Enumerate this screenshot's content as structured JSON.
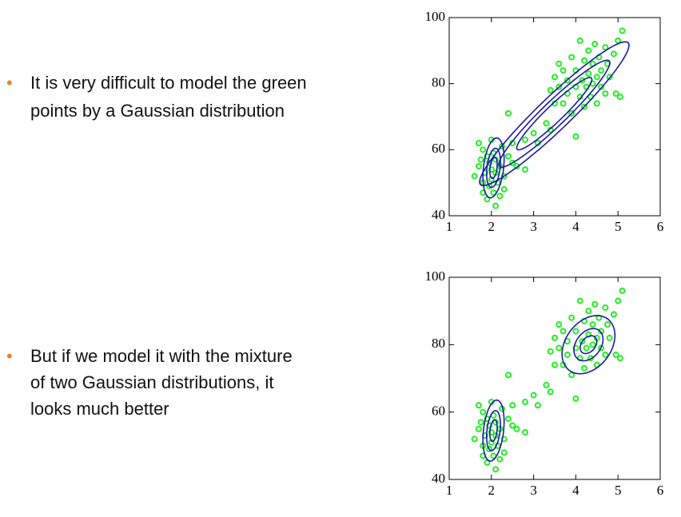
{
  "bullets": [
    [
      "It is very difficult to model the green",
      "points by a Gaussian distribution"
    ],
    [
      "But if we model it with the mixture",
      "of two Gaussian distributions, it",
      "looks much better"
    ]
  ],
  "chart_data": [
    {
      "type": "scatter",
      "color": "#22ee22",
      "line_color": "#1a1aa6",
      "xlim": [
        1,
        6
      ],
      "ylim": [
        40,
        100
      ],
      "xticks": [
        1,
        2,
        3,
        4,
        5,
        6
      ],
      "yticks": [
        40,
        60,
        80,
        100
      ],
      "x": [
        1.6,
        1.7,
        1.7,
        1.75,
        1.8,
        1.8,
        1.8,
        1.85,
        1.9,
        1.9,
        1.95,
        1.95,
        2.0,
        2.0,
        2.0,
        2.05,
        2.05,
        2.1,
        2.1,
        2.1,
        2.15,
        2.2,
        2.2,
        2.25,
        2.3,
        2.3,
        2.4,
        2.5,
        2.5,
        2.6,
        2.8,
        2.8,
        3.0,
        3.1,
        3.3,
        3.4,
        3.5,
        2.4,
        3.4,
        3.5,
        3.6,
        3.6,
        3.7,
        3.7,
        3.8,
        3.8,
        3.9,
        3.9,
        4.0,
        4.0,
        4.0,
        4.1,
        4.1,
        4.15,
        4.2,
        4.2,
        4.25,
        4.3,
        4.3,
        4.35,
        4.4,
        4.4,
        4.45,
        4.5,
        4.5,
        4.55,
        4.6,
        4.6,
        4.7,
        4.7,
        4.75,
        4.8,
        4.9,
        4.95,
        5.0,
        5.1,
        5.05
      ],
      "values": [
        52,
        55,
        62,
        57,
        50,
        47,
        60,
        53,
        45,
        58,
        49,
        56,
        51,
        54,
        63,
        47,
        59,
        43,
        53,
        57,
        50,
        46,
        55,
        61,
        48,
        52,
        58,
        56,
        62,
        55,
        54,
        63,
        65,
        62,
        68,
        66,
        74,
        71,
        78,
        82,
        79,
        86,
        74,
        84,
        77,
        81,
        71,
        88,
        64,
        79,
        84,
        76,
        93,
        81,
        73,
        87,
        79,
        83,
        90,
        76,
        80,
        86,
        92,
        74,
        82,
        88,
        79,
        84,
        77,
        91,
        86,
        82,
        89,
        77,
        93,
        96,
        76
      ],
      "ellipses": [
        {
          "center": [
            3.49,
            70.9
          ],
          "axes": [
            [
              1.75,
              21.5
            ],
            [
              0.27,
              -3.5
            ]
          ]
        },
        {
          "center": [
            3.49,
            70.9
          ],
          "axes": [
            [
              1.3,
              16
            ],
            [
              0.2,
              -2.6
            ]
          ]
        },
        {
          "center": [
            3.49,
            70.9
          ],
          "axes": [
            [
              0.88,
              10.8
            ],
            [
              0.14,
              -1.8
            ]
          ]
        },
        {
          "center": [
            2.05,
            54.5
          ],
          "axes": [
            [
              0.1,
              9
            ],
            [
              0.23,
              -1
            ]
          ]
        },
        {
          "center": [
            2.05,
            54.5
          ],
          "axes": [
            [
              0.065,
              5.9
            ],
            [
              0.15,
              -0.65
            ]
          ]
        },
        {
          "center": [
            2.05,
            54.5
          ],
          "axes": [
            [
              0.035,
              3.2
            ],
            [
              0.08,
              -0.35
            ]
          ]
        }
      ],
      "ellipse_chart": [
        0,
        0,
        0
      ]
    },
    {
      "type": "scatter",
      "color": "#22ee22",
      "line_color": "#1a1aa6",
      "xlim": [
        1,
        6
      ],
      "ylim": [
        40,
        100
      ],
      "xticks": [
        1,
        2,
        3,
        4,
        5,
        6
      ],
      "yticks": [
        40,
        60,
        80,
        100
      ],
      "x": [
        1.6,
        1.7,
        1.7,
        1.75,
        1.8,
        1.8,
        1.8,
        1.85,
        1.9,
        1.9,
        1.95,
        1.95,
        2.0,
        2.0,
        2.0,
        2.05,
        2.05,
        2.1,
        2.1,
        2.1,
        2.15,
        2.2,
        2.2,
        2.25,
        2.3,
        2.3,
        2.4,
        2.5,
        2.5,
        2.6,
        2.8,
        2.8,
        3.0,
        3.1,
        3.3,
        3.4,
        3.5,
        2.4,
        3.4,
        3.5,
        3.6,
        3.6,
        3.7,
        3.7,
        3.8,
        3.8,
        3.9,
        3.9,
        4.0,
        4.0,
        4.0,
        4.1,
        4.1,
        4.15,
        4.2,
        4.2,
        4.25,
        4.3,
        4.3,
        4.35,
        4.4,
        4.4,
        4.45,
        4.5,
        4.5,
        4.55,
        4.6,
        4.6,
        4.7,
        4.7,
        4.75,
        4.8,
        4.9,
        4.95,
        5.0,
        5.1,
        5.05
      ],
      "values": [
        52,
        55,
        62,
        57,
        50,
        47,
        60,
        53,
        45,
        58,
        49,
        56,
        51,
        54,
        63,
        47,
        59,
        43,
        53,
        57,
        50,
        46,
        55,
        61,
        48,
        52,
        58,
        56,
        62,
        55,
        54,
        63,
        65,
        62,
        68,
        66,
        74,
        71,
        78,
        82,
        79,
        86,
        74,
        84,
        77,
        81,
        71,
        88,
        64,
        79,
        84,
        76,
        93,
        81,
        73,
        87,
        79,
        83,
        90,
        76,
        80,
        86,
        92,
        74,
        82,
        88,
        79,
        84,
        77,
        91,
        86,
        82,
        89,
        77,
        93,
        96,
        76
      ],
      "ellipses": [
        {
          "center": [
            2.05,
            54.5
          ],
          "axes": [
            [
              0.1,
              9
            ],
            [
              0.23,
              -1
            ]
          ]
        },
        {
          "center": [
            2.05,
            54.5
          ],
          "axes": [
            [
              0.065,
              5.9
            ],
            [
              0.15,
              -0.65
            ]
          ]
        },
        {
          "center": [
            2.05,
            54.5
          ],
          "axes": [
            [
              0.035,
              3.2
            ],
            [
              0.08,
              -0.35
            ]
          ]
        },
        {
          "center": [
            4.3,
            80
          ],
          "axes": [
            [
              0.3,
              8.5
            ],
            [
              0.55,
              -1.5
            ]
          ]
        },
        {
          "center": [
            4.3,
            80
          ],
          "axes": [
            [
              0.17,
              4.7
            ],
            [
              0.3,
              -0.83
            ]
          ]
        },
        {
          "center": [
            4.3,
            80
          ],
          "axes": [
            [
              0.1,
              2.6
            ],
            [
              0.17,
              -0.45
            ]
          ]
        }
      ]
    }
  ]
}
